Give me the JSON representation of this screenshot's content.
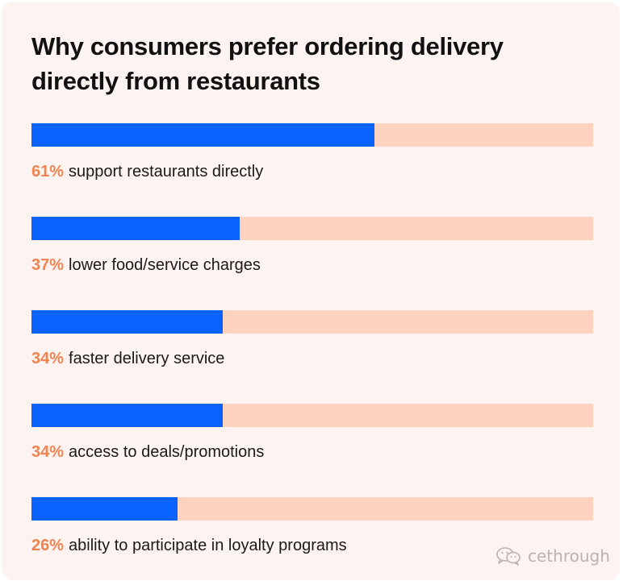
{
  "colors": {
    "card_background": "#fdf3f0",
    "bar_fill": "#0a63ff",
    "bar_track": "#fdd3c0",
    "percent_text": "#f0834f",
    "label_text": "#1a1a1a",
    "title_text": "#111111"
  },
  "watermark": {
    "icon": "wechat-icon",
    "text": "cethrough"
  },
  "chart_data": {
    "type": "bar",
    "orientation": "horizontal",
    "title": "Why consumers prefer ordering delivery directly from restaurants",
    "xlim": [
      0,
      100
    ],
    "unit": "%",
    "grid": false,
    "legend": "none",
    "categories": [
      "support restaurants directly",
      "lower food/service charges",
      "faster delivery service",
      "access to deals/promotions",
      "ability to participate in loyalty programs"
    ],
    "values": [
      61,
      37,
      34,
      34,
      26
    ],
    "value_labels": [
      "61%",
      "37%",
      "34%",
      "34%",
      "26%"
    ]
  }
}
